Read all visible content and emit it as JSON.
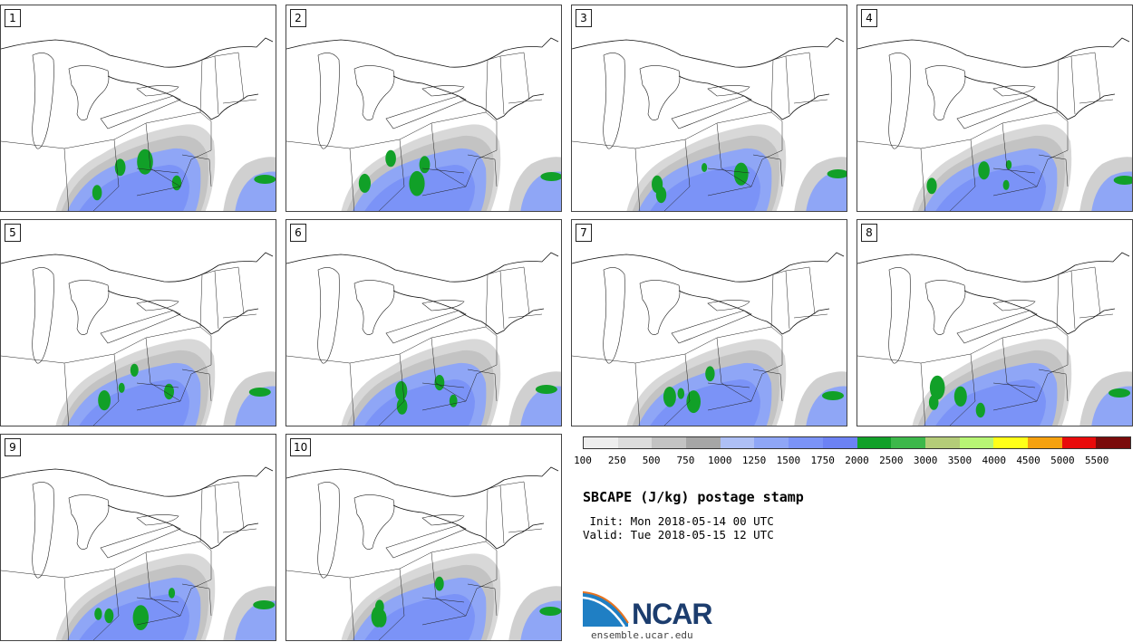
{
  "title": "SBCAPE (J/kg) postage stamp",
  "init_line": " Init: Mon 2018-05-14 00 UTC",
  "valid_line": "Valid: Tue 2018-05-15 12 UTC",
  "site": "ensemble.ucar.edu",
  "logo_text": "NCAR",
  "colorbar": {
    "ticks": [
      "100",
      "250",
      "500",
      "750",
      "1000",
      "1250",
      "1500",
      "1750",
      "2000",
      "2500",
      "3000",
      "3500",
      "4000",
      "4500",
      "5000",
      "5500"
    ],
    "colors": [
      "#eeeeee",
      "#dcdcdc",
      "#c3c3c3",
      "#a6a6a6",
      "#aebff5",
      "#8fa6f6",
      "#7b93f7",
      "#6c82f4",
      "#11a028",
      "#3db84a",
      "#b4cc78",
      "#b8f574",
      "#ffff18",
      "#f5a10f",
      "#e80b0b",
      "#7a0b0b"
    ]
  },
  "panels": [
    {
      "label": "1"
    },
    {
      "label": "2"
    },
    {
      "label": "3"
    },
    {
      "label": "4"
    },
    {
      "label": "5"
    },
    {
      "label": "6"
    },
    {
      "label": "7"
    },
    {
      "label": "8"
    },
    {
      "label": "9"
    },
    {
      "label": "10"
    }
  ]
}
